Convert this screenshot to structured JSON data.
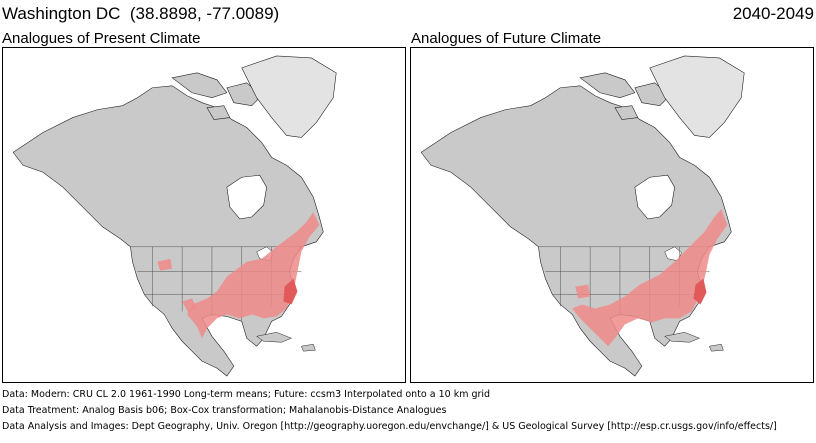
{
  "header": {
    "location": "Washington DC",
    "coordinates": "(38.8898, -77.0089)",
    "period": "2040-2049"
  },
  "panels": [
    {
      "label": "Analogues of Present Climate",
      "map": "north-america-present-analogues"
    },
    {
      "label": "Analogues of Future Climate",
      "map": "north-america-future-analogues"
    }
  ],
  "colors": {
    "land": "#c9c9c9",
    "land_stroke": "#222222",
    "analog_zone": "#f08a8a",
    "analog_core": "#e05a5a",
    "greenland": "#e3e3e3"
  },
  "footer": {
    "data_line": "Data:  Modern: CRU CL 2.0 1961-1990 Long-term means; Future: ccsm3 Interpolated onto a 10 km grid",
    "treatment_line": "Data Treatment:  Analog Basis b06; Box-Cox transformation; Mahalanobis-Distance Analogues",
    "credits_line": "Data Analysis and Images:  Dept Geography, Univ. Oregon [http://geography.uoregon.edu/envchange/] & US Geological Survey [http://esp.cr.usgs.gov/info/effects/]"
  }
}
